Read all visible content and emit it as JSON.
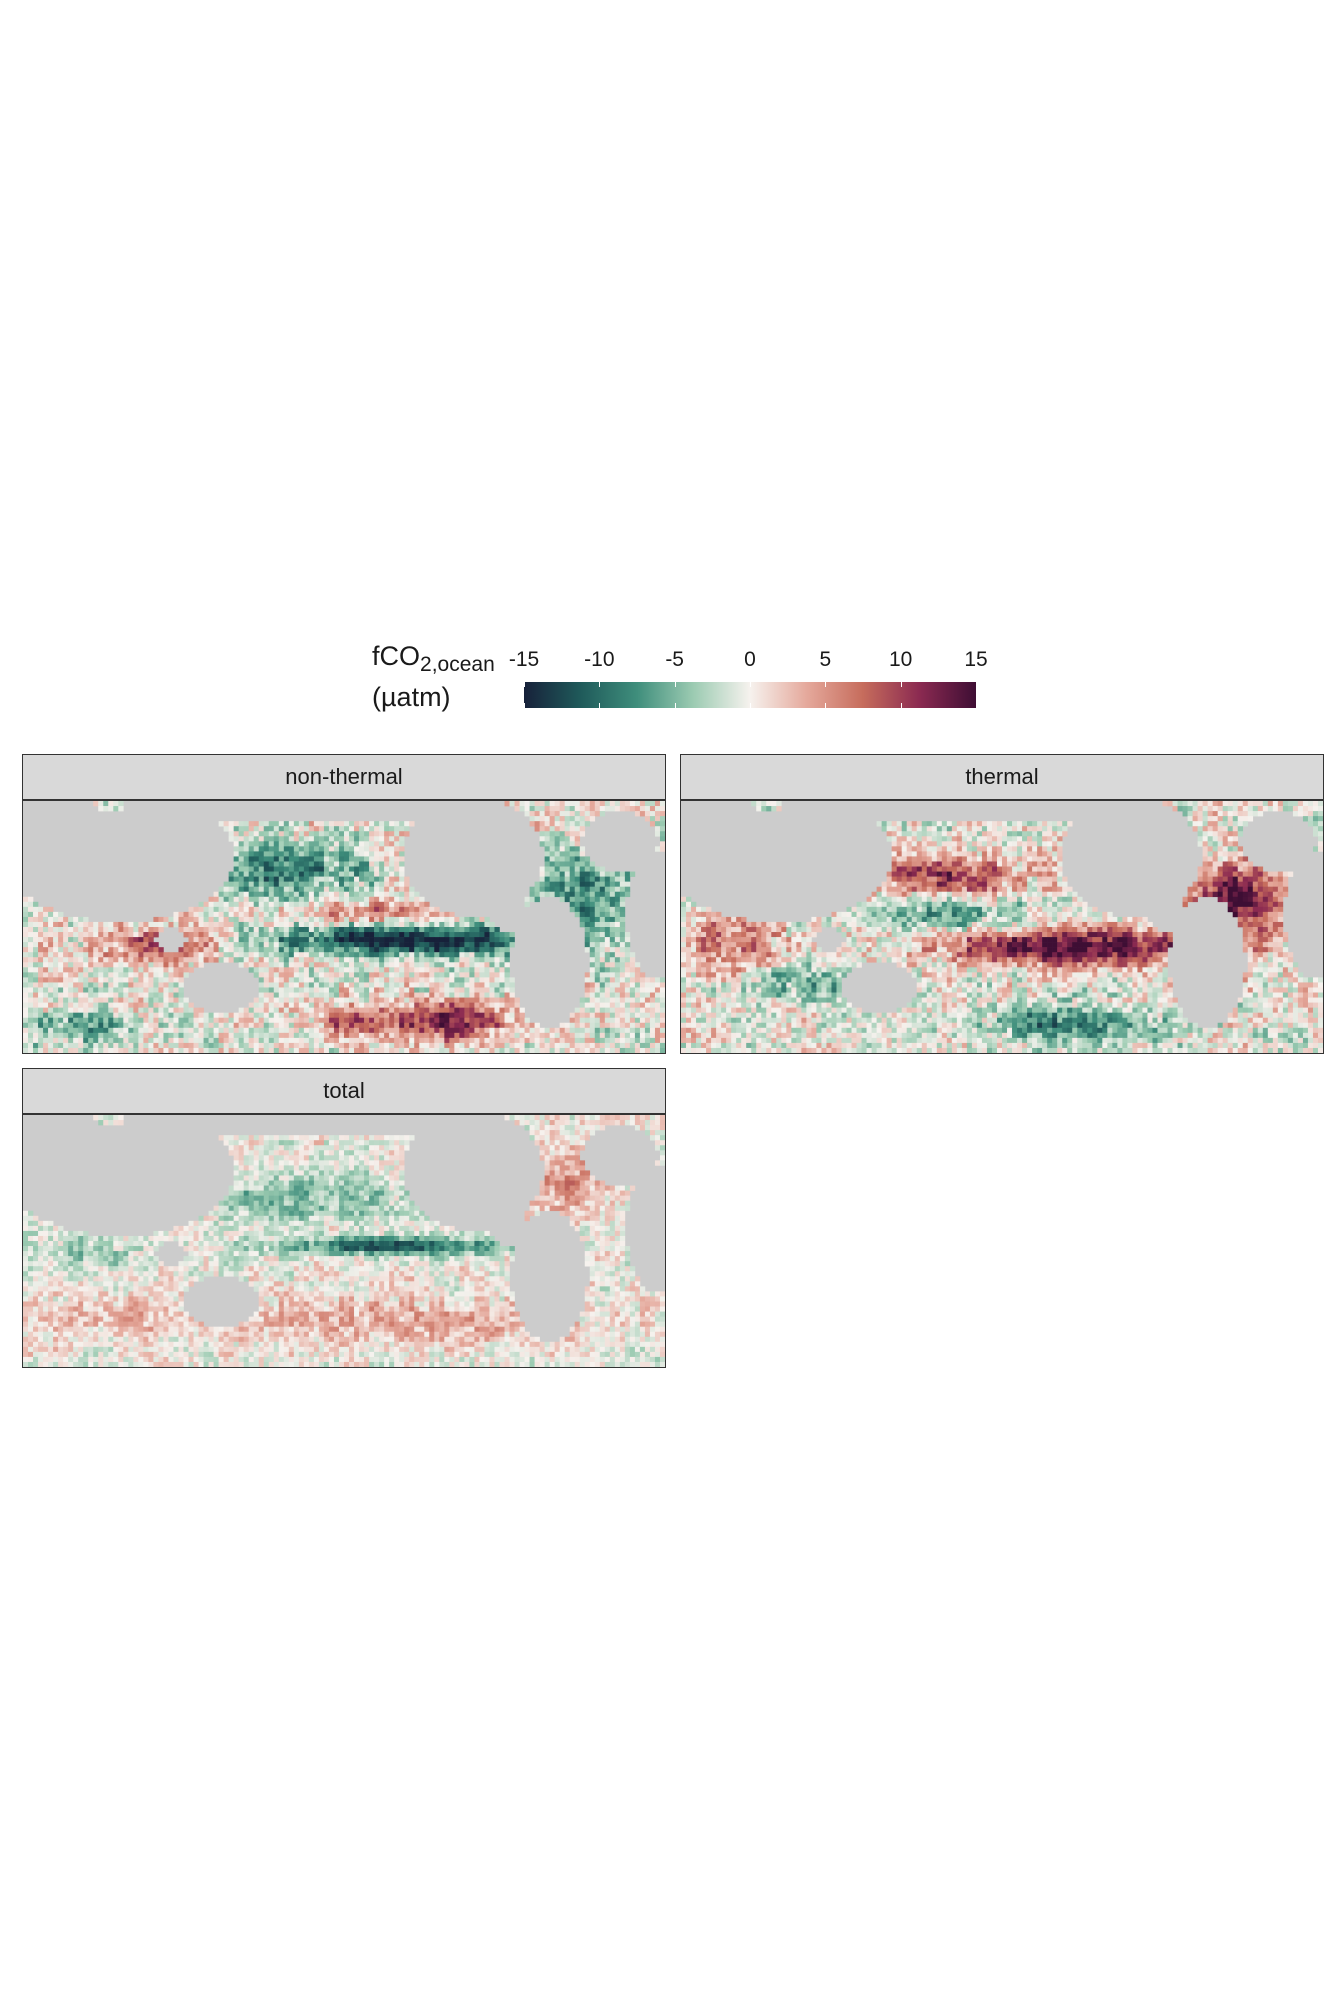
{
  "legend": {
    "title_main": "fCO",
    "title_sub": "2,ocean",
    "title_unit": "(µatm)",
    "ticks": [
      "-15",
      "-10",
      "-5",
      "0",
      "5",
      "10",
      "15"
    ],
    "tick_values": [
      -15,
      -10,
      -5,
      0,
      5,
      10,
      15
    ],
    "range": [
      -15,
      15
    ],
    "colors": [
      "#17213a",
      "#1f5a5a",
      "#3f8e7c",
      "#9ccbb2",
      "#f6f2ee",
      "#e5a99c",
      "#c66c5c",
      "#8b2a51",
      "#3e0e34"
    ]
  },
  "map": {
    "land_color": "#cccccc",
    "panels": [
      {
        "label": "non-thermal"
      },
      {
        "label": "thermal"
      },
      {
        "label": "total"
      }
    ]
  }
}
